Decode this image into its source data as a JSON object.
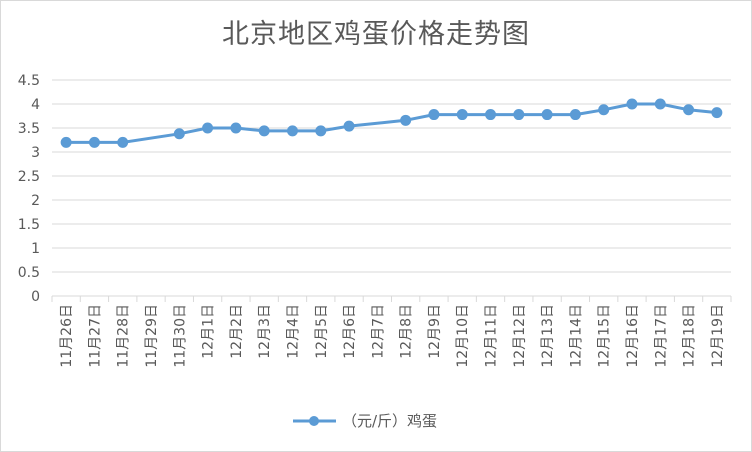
{
  "chart_data": {
    "type": "line",
    "title": "北京地区鸡蛋价格走势图",
    "categories": [
      "11月26日",
      "11月27日",
      "11月28日",
      "11月29日",
      "11月30日",
      "12月1日",
      "12月2日",
      "12月3日",
      "12月4日",
      "12月5日",
      "12月6日",
      "12月7日",
      "12月8日",
      "12月9日",
      "12月10日",
      "12月11日",
      "12月12日",
      "12月13日",
      "12月14日",
      "12月15日",
      "12月16日",
      "12月17日",
      "12月18日",
      "12月19日"
    ],
    "series": [
      {
        "name": "（元/斤）鸡蛋",
        "values": [
          3.2,
          3.2,
          3.2,
          null,
          3.38,
          3.5,
          3.5,
          3.44,
          3.44,
          3.44,
          3.54,
          null,
          3.66,
          3.78,
          3.78,
          3.78,
          3.78,
          3.78,
          3.78,
          3.88,
          4.0,
          4.0,
          3.88,
          3.82
        ]
      }
    ],
    "yticks": [
      "0",
      "0.5",
      "1",
      "1.5",
      "2",
      "2.5",
      "3",
      "3.5",
      "4",
      "4.5"
    ],
    "ylim": [
      0,
      4.5
    ],
    "grid": true,
    "legend_position": "bottom",
    "color": "#5b9bd5"
  }
}
